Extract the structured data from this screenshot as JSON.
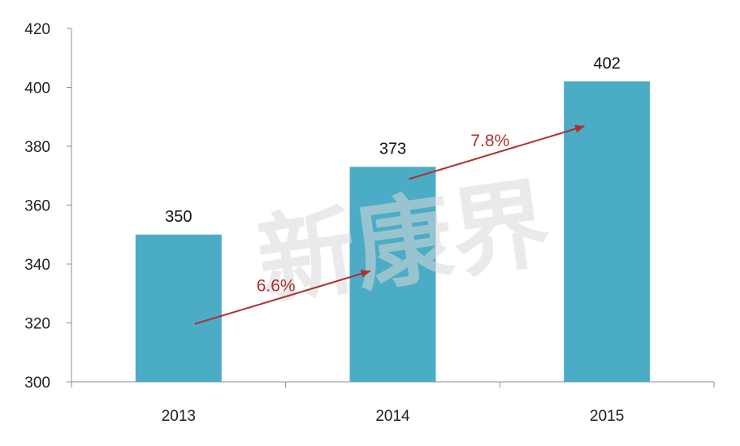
{
  "chart_data": {
    "type": "bar",
    "categories": [
      "2013",
      "2014",
      "2015"
    ],
    "values": [
      350,
      373,
      402
    ],
    "data_labels": [
      "350",
      "373",
      "402"
    ],
    "ylim": [
      300,
      420
    ],
    "yticks": [
      "300",
      "320",
      "340",
      "360",
      "380",
      "400",
      "420"
    ],
    "title": "",
    "xlabel": "",
    "ylabel": "",
    "grid": false,
    "legend": "none",
    "bar_color": "#4bacc6",
    "growth_annotations": [
      {
        "text": "6.6%",
        "from": "2013",
        "to": "2014"
      },
      {
        "text": "7.8%",
        "from": "2014",
        "to": "2015"
      }
    ],
    "annotation_color": "#b03030"
  },
  "watermark": {
    "text": "新康界"
  }
}
